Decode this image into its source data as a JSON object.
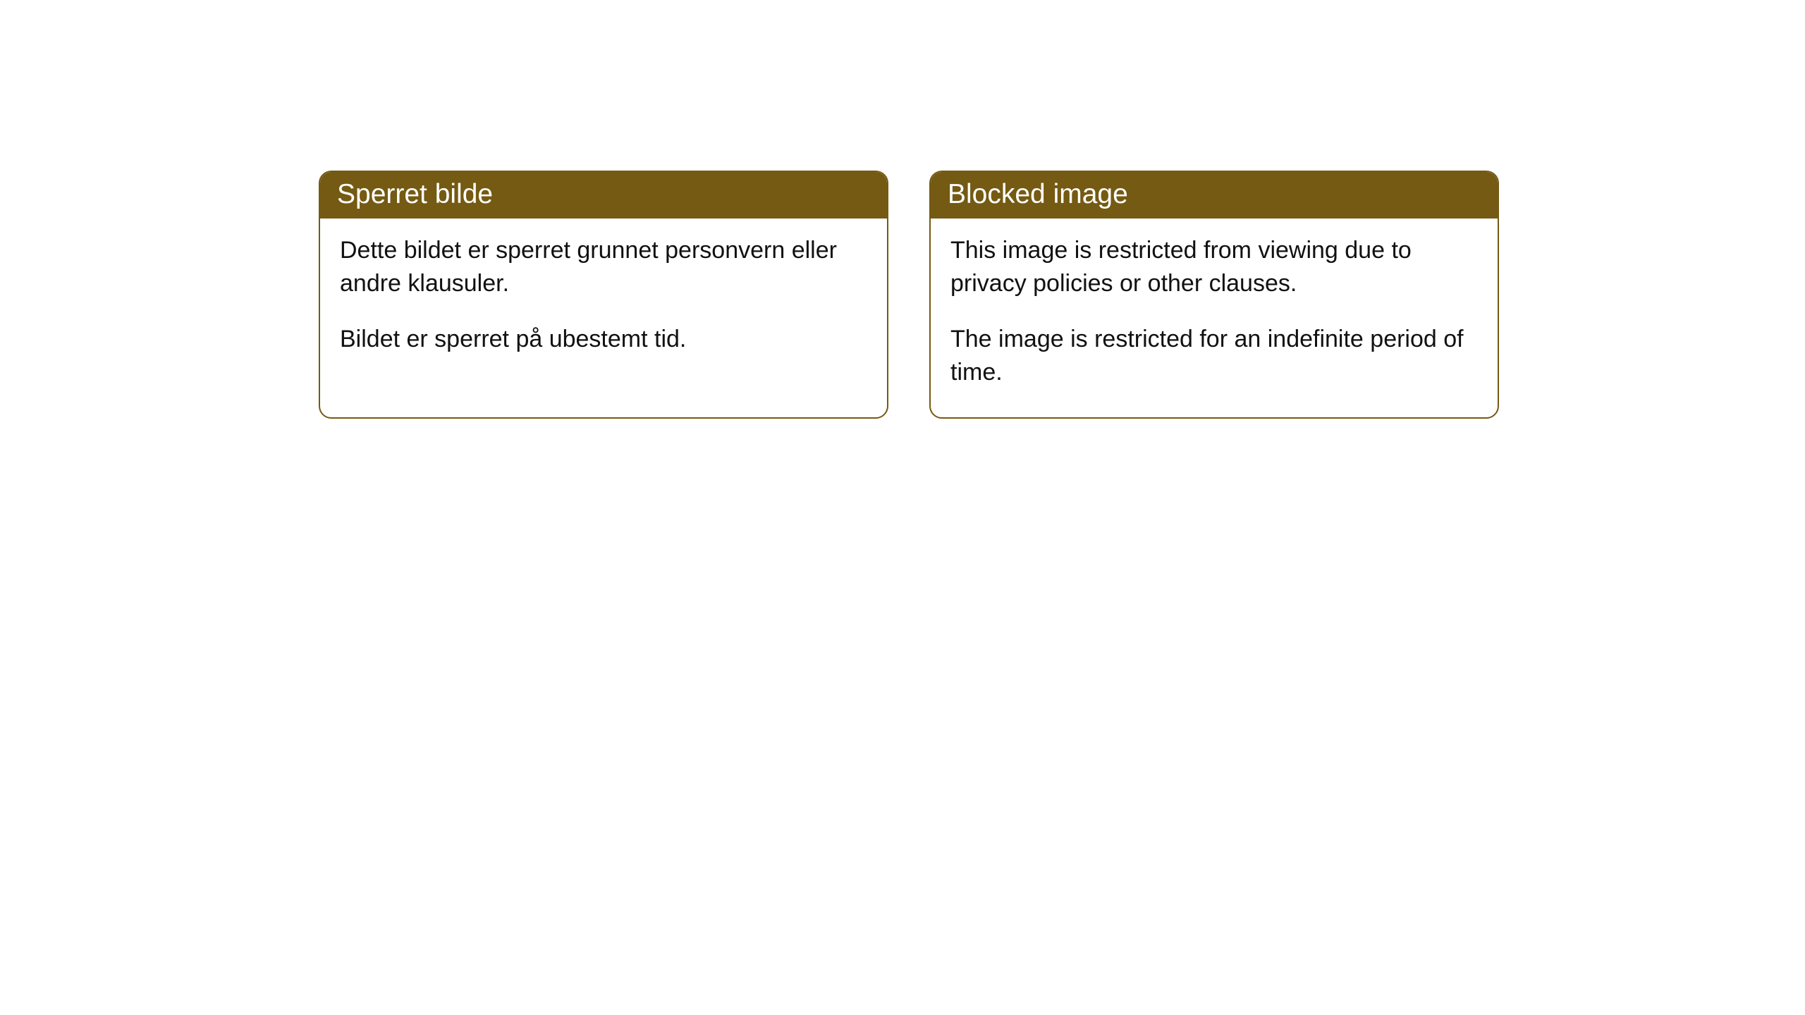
{
  "cards": [
    {
      "title": "Sperret bilde",
      "para1": "Dette bildet er sperret grunnet personvern eller andre klausuler.",
      "para2": "Bildet er sperret på ubestemt tid."
    },
    {
      "title": "Blocked image",
      "para1": "This image is restricted from viewing due to privacy policies or other clauses.",
      "para2": "The image is restricted for an indefinite period of time."
    }
  ],
  "style": {
    "header_bg": "#745a12",
    "header_text_color": "#ffffff",
    "border_color": "#745a12",
    "body_bg": "#ffffff",
    "body_text_color": "#111111",
    "title_fontsize": 39,
    "body_fontsize": 34,
    "border_radius": 18
  }
}
